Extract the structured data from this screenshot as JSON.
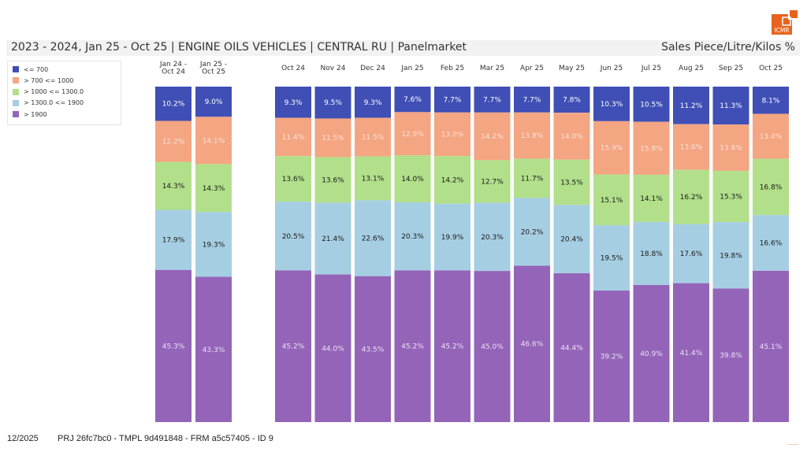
{
  "header": {
    "title": "2023 - 2024, Jan 25 - Oct 25 | ENGINE OILS VEHICLES | CENTRAL RU | Panelmarket",
    "measure": "Sales Piece/Litre/Kilos %",
    "logo_text": "ICMR",
    "logo_color": "#e8641e"
  },
  "footer": {
    "date": "12/2025",
    "ids": "PRJ 26fc7bc0 - TMPL 9d491848 - FRM a5c57405 - ID 9"
  },
  "chart_data": {
    "type": "bar",
    "stacked": true,
    "normalized": true,
    "title": "2023 - 2024, Jan 25 - Oct 25 | ENGINE OILS VEHICLES | CENTRAL RU | Panelmarket",
    "ylabel": "Sales Piece/Litre/Kilos %",
    "legend_position": "top-left",
    "categories": [
      "Jan 24 - Oct 24",
      "Jan 25 - Oct 25",
      "Oct 24",
      "Nov 24",
      "Dec 24",
      "Jan 25",
      "Feb 25",
      "Mar 25",
      "Apr 25",
      "May 25",
      "Jun 25",
      "Jul 25",
      "Aug 25",
      "Sep 25",
      "Oct 25"
    ],
    "category_label_lines": [
      [
        "Jan 24 -",
        "Oct 24"
      ],
      [
        "Jan 25 -",
        "Oct 25"
      ],
      [
        "Oct 24"
      ],
      [
        "Nov 24"
      ],
      [
        "Dec 24"
      ],
      [
        "Jan 25"
      ],
      [
        "Feb 25"
      ],
      [
        "Mar 25"
      ],
      [
        "Apr 25"
      ],
      [
        "May 25"
      ],
      [
        "Jun 25"
      ],
      [
        "Jul 25"
      ],
      [
        "Aug 25"
      ],
      [
        "Sep 25"
      ],
      [
        "Oct 25"
      ]
    ],
    "groups": [
      {
        "name": "period totals",
        "count": 2
      },
      {
        "name": "monthly",
        "count": 13
      }
    ],
    "series": [
      {
        "name": "<= 700",
        "color": "#3f4fb5",
        "label_color": "#ffffff",
        "values": [
          10.2,
          9.0,
          9.3,
          9.5,
          9.3,
          7.6,
          7.7,
          7.7,
          7.7,
          7.8,
          10.3,
          10.5,
          11.2,
          11.3,
          8.1
        ]
      },
      {
        "name": "> 700 <= 1000",
        "color": "#f4a582",
        "label_color": "#fbe3d6",
        "values": [
          12.2,
          14.1,
          11.4,
          11.5,
          11.5,
          12.9,
          13.0,
          14.2,
          13.8,
          14.0,
          15.9,
          15.8,
          13.6,
          13.8,
          13.4
        ]
      },
      {
        "name": "> 1000 <= 1300.0",
        "color": "#b2df8a",
        "label_color": "#1a1a1a",
        "values": [
          14.3,
          14.3,
          13.6,
          13.6,
          13.1,
          14.0,
          14.2,
          12.7,
          11.7,
          13.5,
          15.1,
          14.1,
          16.2,
          15.3,
          16.8
        ]
      },
      {
        "name": "> 1300.0 <= 1900",
        "color": "#a6cee3",
        "label_color": "#1a1a1a",
        "values": [
          17.9,
          19.3,
          20.5,
          21.4,
          22.6,
          20.3,
          19.9,
          20.3,
          20.2,
          20.4,
          19.5,
          18.8,
          17.6,
          19.8,
          16.6
        ]
      },
      {
        "name": "> 1900",
        "color": "#9464b9",
        "label_color": "#eadff3",
        "values": [
          45.3,
          43.3,
          45.2,
          44.0,
          43.5,
          45.2,
          45.2,
          45.0,
          46.6,
          44.4,
          39.2,
          40.9,
          41.4,
          39.8,
          45.1
        ]
      }
    ],
    "value_format": "percent_1dp"
  }
}
